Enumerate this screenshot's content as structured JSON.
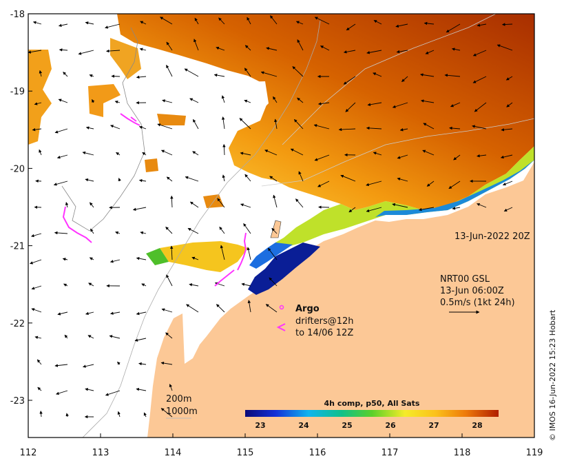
{
  "map": {
    "lon_ticks": [
      "112",
      "113",
      "114",
      "115",
      "116",
      "117",
      "118",
      "119"
    ],
    "lat_ticks": [
      "-18",
      "-19",
      "-20",
      "-21",
      "-22",
      "-23"
    ],
    "valid_time": "13-Jun-2022 20Z",
    "current_info": {
      "line1": "NRT00 GSL",
      "line2": "13-Jun 06:00Z",
      "line3": "0.5m/s (1kt 24h)"
    },
    "legend": {
      "argo_label": "Argo",
      "drifters_line1": "drifters@12h",
      "drifters_line2": "to 14/06 12Z",
      "argo_color": "#ff33ff"
    },
    "depth_contours": {
      "line1": "200m",
      "line2": "1000m"
    },
    "colorbar": {
      "title": "4h comp, p50, All Sats",
      "ticks": [
        "23",
        "24",
        "25",
        "26",
        "27",
        "28"
      ]
    },
    "credit": "© IMOS 16-Jun-2022 15:23 Hobart",
    "colors": {
      "land": "#fcc896",
      "sst_warm": "#b83800",
      "sst_cold": "#0a1e96"
    }
  }
}
